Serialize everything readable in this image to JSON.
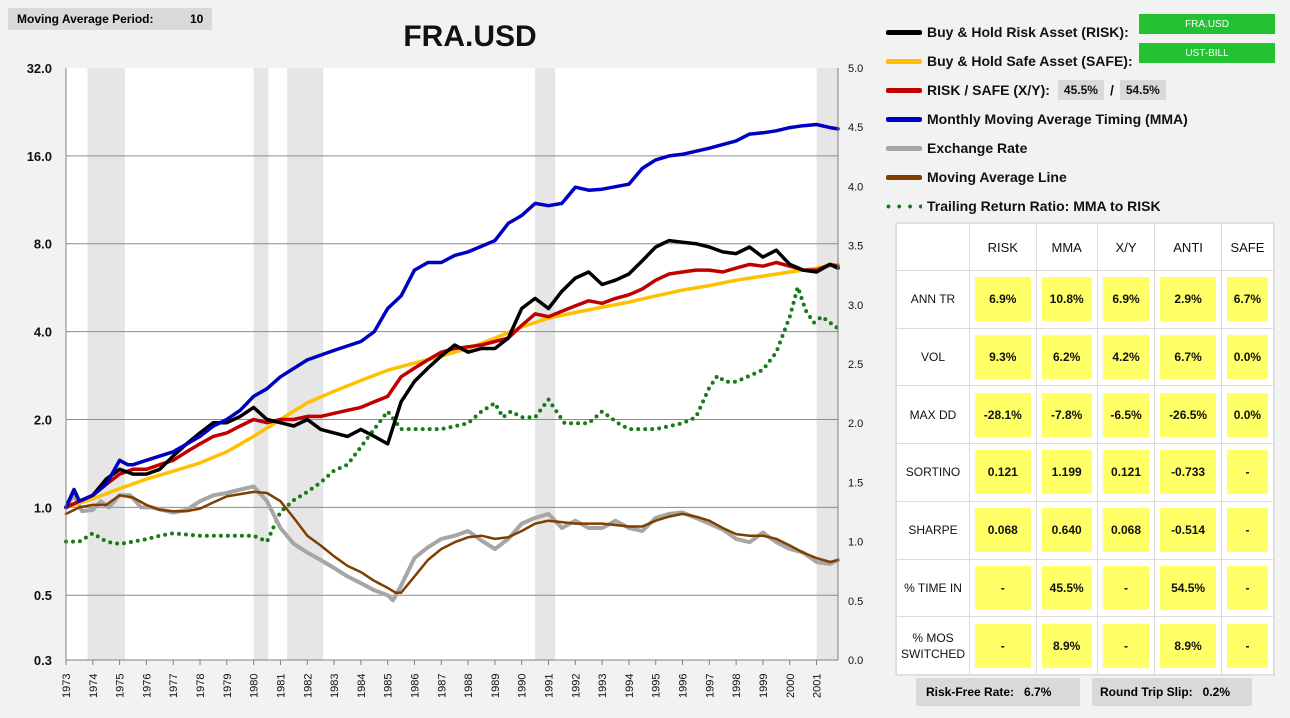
{
  "controls": {
    "period_label": "Moving Average Period:",
    "period_value": "10"
  },
  "legend": [
    {
      "label": "Buy & Hold Risk Asset (RISK):",
      "color": "#000000",
      "style": "line",
      "tag": "FRA.USD"
    },
    {
      "label": "Buy & Hold Safe Asset (SAFE):",
      "color": "#ffc000",
      "style": "line",
      "tag": "UST-BILL"
    },
    {
      "label": "RISK / SAFE (X/Y):",
      "color": "#c00000",
      "style": "line",
      "pct_risk": "45.5%",
      "pct_sep": "/",
      "pct_safe": "54.5%"
    },
    {
      "label": "Monthly Moving Average Timing (MMA)",
      "color": "#0000c0",
      "style": "line"
    },
    {
      "label": "Exchange Rate",
      "color": "#a6a6a6",
      "style": "line"
    },
    {
      "label": "Moving Average Line",
      "color": "#7f3f00",
      "style": "line"
    },
    {
      "label": "Trailing Return Ratio: MMA to RISK",
      "color": "#1a7a1a",
      "style": "dots"
    }
  ],
  "stats": {
    "columns": [
      "RISK",
      "MMA",
      "X/Y",
      "ANTI",
      "SAFE"
    ],
    "rows": [
      {
        "label": "ANN TR",
        "values": [
          "6.9%",
          "10.8%",
          "6.9%",
          "2.9%",
          "6.7%"
        ]
      },
      {
        "label": "VOL",
        "values": [
          "9.3%",
          "6.2%",
          "4.2%",
          "6.7%",
          "0.0%"
        ]
      },
      {
        "label": "MAX DD",
        "values": [
          "-28.1%",
          "-7.8%",
          "-6.5%",
          "-26.5%",
          "0.0%"
        ]
      },
      {
        "label": "SORTINO",
        "values": [
          "0.121",
          "1.199",
          "0.121",
          "-0.733",
          "-"
        ]
      },
      {
        "label": "SHARPE",
        "values": [
          "0.068",
          "0.640",
          "0.068",
          "-0.514",
          "-"
        ]
      },
      {
        "label": "% TIME IN",
        "values": [
          "-",
          "45.5%",
          "-",
          "54.5%",
          "-"
        ]
      },
      {
        "label": "% MOS SWITCHED",
        "values": [
          "-",
          "8.9%",
          "-",
          "8.9%",
          "-"
        ]
      }
    ]
  },
  "footer": {
    "risk_free": "Risk-Free Rate:   6.7%",
    "slip": "Round Trip Slip:   0.2%"
  },
  "chart_data": {
    "type": "line",
    "title": "FRA.USD",
    "y_left": {
      "scale": "log2",
      "ticks": [
        32.0,
        16.0,
        8.0,
        4.0,
        2.0,
        1.0,
        0.5,
        0.3
      ],
      "tick_labels": [
        "32.0",
        "16.0",
        "8.0",
        "4.0",
        "2.0",
        "1.0",
        "0.5",
        "0.3"
      ]
    },
    "y_right": {
      "ticks": [
        5.0,
        4.5,
        4.0,
        3.5,
        3.0,
        2.5,
        2.0,
        1.5,
        1.0,
        0.5,
        0.0
      ],
      "tick_labels": [
        "5.0",
        "4.5",
        "4.0",
        "3.5",
        "3.0",
        "2.5",
        "2.0",
        "1.5",
        "1.0",
        "0.5",
        "0.0"
      ],
      "ylim": [
        0,
        5
      ]
    },
    "x_ticks": [
      "1973",
      "1974",
      "1975",
      "1976",
      "1977",
      "1978",
      "1979",
      "1980",
      "1981",
      "1982",
      "1983",
      "1984",
      "1985",
      "1986",
      "1987",
      "1988",
      "1989",
      "1990",
      "1991",
      "1992",
      "1993",
      "1994",
      "1995",
      "1996",
      "1997",
      "1998",
      "1999",
      "2000",
      "2001"
    ],
    "xlim": [
      1973.0,
      2001.8
    ],
    "shaded_periods": [
      [
        1973.8,
        1975.2
      ],
      [
        1980.0,
        1980.55
      ],
      [
        1981.25,
        1982.6
      ],
      [
        1990.5,
        1991.25
      ],
      [
        2001.0,
        2001.8
      ]
    ],
    "series": [
      {
        "key": "mma",
        "axis": "left",
        "color": "#0000c0",
        "width": 3.5,
        "x": [
          1973.0,
          1973.3,
          1973.5,
          1974.0,
          1974.5,
          1975.0,
          1975.3,
          1975.5,
          1976.0,
          1977.0,
          1978.0,
          1978.5,
          1979.0,
          1979.5,
          1980.0,
          1980.5,
          1981.0,
          1982.0,
          1983.0,
          1984.0,
          1984.5,
          1985.0,
          1985.5,
          1986.0,
          1986.5,
          1987.0,
          1987.5,
          1988.0,
          1989.0,
          1989.5,
          1990.0,
          1990.5,
          1991.0,
          1991.5,
          1992.0,
          1992.5,
          1993.0,
          1994.0,
          1994.5,
          1995.0,
          1995.5,
          1996.0,
          1997.0,
          1998.0,
          1998.5,
          1999.0,
          1999.5,
          2000.0,
          2000.5,
          2001.0,
          2001.5,
          2001.8
        ],
        "y": [
          1.0,
          1.15,
          1.05,
          1.1,
          1.2,
          1.45,
          1.4,
          1.4,
          1.45,
          1.55,
          1.75,
          1.9,
          2.0,
          2.15,
          2.4,
          2.55,
          2.8,
          3.2,
          3.45,
          3.7,
          4.0,
          4.8,
          5.3,
          6.5,
          6.9,
          6.9,
          7.3,
          7.5,
          8.2,
          9.4,
          10.0,
          11.0,
          10.8,
          11.0,
          12.5,
          12.2,
          12.3,
          12.8,
          14.5,
          15.5,
          16.0,
          16.2,
          17.0,
          18.0,
          19.0,
          19.2,
          19.5,
          20.0,
          20.3,
          20.5,
          20.0,
          19.8
        ]
      },
      {
        "key": "risk",
        "axis": "left",
        "color": "#000000",
        "width": 3.5,
        "x": [
          1973.0,
          1973.3,
          1973.5,
          1974.0,
          1974.5,
          1975.0,
          1975.5,
          1976.0,
          1976.5,
          1977.0,
          1977.5,
          1978.0,
          1978.5,
          1979.0,
          1979.5,
          1980.0,
          1980.5,
          1981.0,
          1981.5,
          1982.0,
          1982.5,
          1983.0,
          1983.5,
          1984.0,
          1984.5,
          1985.0,
          1985.5,
          1986.0,
          1986.5,
          1987.0,
          1987.5,
          1988.0,
          1988.5,
          1989.0,
          1989.5,
          1990.0,
          1990.5,
          1991.0,
          1991.5,
          1992.0,
          1992.5,
          1993.0,
          1993.5,
          1994.0,
          1994.5,
          1995.0,
          1995.5,
          1996.0,
          1996.5,
          1997.0,
          1997.5,
          1998.0,
          1998.5,
          1999.0,
          1999.5,
          2000.0,
          2000.5,
          2001.0,
          2001.5,
          2001.8
        ],
        "y": [
          1.0,
          1.15,
          1.05,
          1.1,
          1.25,
          1.35,
          1.3,
          1.3,
          1.35,
          1.5,
          1.65,
          1.8,
          1.95,
          1.95,
          2.05,
          2.2,
          2.0,
          1.95,
          1.9,
          2.0,
          1.85,
          1.8,
          1.75,
          1.85,
          1.75,
          1.65,
          2.3,
          2.7,
          3.0,
          3.3,
          3.6,
          3.4,
          3.5,
          3.5,
          3.8,
          4.8,
          5.2,
          4.8,
          5.5,
          6.1,
          6.4,
          5.8,
          6.0,
          6.3,
          7.0,
          7.8,
          8.2,
          8.1,
          8.0,
          7.8,
          7.5,
          7.4,
          7.8,
          7.2,
          7.6,
          6.8,
          6.5,
          6.4,
          6.8,
          6.6
        ]
      },
      {
        "key": "xy",
        "axis": "left",
        "color": "#c00000",
        "width": 3.5,
        "x": [
          1973.0,
          1973.5,
          1974.0,
          1974.5,
          1975.0,
          1975.5,
          1976.0,
          1976.5,
          1977.0,
          1977.5,
          1978.0,
          1978.5,
          1979.0,
          1979.5,
          1980.0,
          1980.5,
          1981.0,
          1981.5,
          1982.0,
          1982.5,
          1983.0,
          1983.5,
          1984.0,
          1984.5,
          1985.0,
          1985.5,
          1986.0,
          1986.5,
          1987.0,
          1987.5,
          1988.0,
          1988.5,
          1989.0,
          1989.5,
          1990.0,
          1990.5,
          1991.0,
          1991.5,
          1992.0,
          1992.5,
          1993.0,
          1993.5,
          1994.0,
          1994.5,
          1995.0,
          1995.5,
          1996.0,
          1996.5,
          1997.0,
          1997.5,
          1998.0,
          1998.5,
          1999.0,
          1999.5,
          2000.0,
          2000.5,
          2001.0,
          2001.5,
          2001.8
        ],
        "y": [
          1.0,
          1.05,
          1.1,
          1.2,
          1.3,
          1.35,
          1.35,
          1.4,
          1.45,
          1.55,
          1.65,
          1.75,
          1.8,
          1.9,
          2.0,
          1.95,
          2.0,
          2.0,
          2.05,
          2.05,
          2.1,
          2.15,
          2.2,
          2.3,
          2.4,
          2.8,
          3.0,
          3.2,
          3.4,
          3.5,
          3.55,
          3.6,
          3.7,
          3.8,
          4.2,
          4.6,
          4.5,
          4.7,
          4.9,
          5.1,
          5.0,
          5.2,
          5.35,
          5.6,
          6.0,
          6.3,
          6.4,
          6.5,
          6.5,
          6.4,
          6.6,
          6.8,
          6.7,
          6.9,
          6.7,
          6.5,
          6.5,
          6.8,
          6.7
        ]
      },
      {
        "key": "safe",
        "axis": "left",
        "color": "#ffc000",
        "width": 3.5,
        "x": [
          1973.0,
          1974.0,
          1975.0,
          1976.0,
          1977.0,
          1978.0,
          1979.0,
          1980.0,
          1981.0,
          1982.0,
          1983.0,
          1984.0,
          1985.0,
          1986.0,
          1987.0,
          1988.0,
          1989.0,
          1990.0,
          1991.0,
          1992.0,
          1993.0,
          1994.0,
          1995.0,
          1996.0,
          1997.0,
          1998.0,
          1999.0,
          2000.0,
          2001.0,
          2001.8
        ],
        "y": [
          1.0,
          1.07,
          1.16,
          1.25,
          1.33,
          1.42,
          1.55,
          1.75,
          2.0,
          2.28,
          2.5,
          2.72,
          2.95,
          3.12,
          3.3,
          3.5,
          3.8,
          4.15,
          4.45,
          4.65,
          4.85,
          5.05,
          5.3,
          5.55,
          5.75,
          6.0,
          6.2,
          6.4,
          6.6,
          6.8
        ]
      },
      {
        "key": "fx",
        "axis": "left",
        "color": "#a6a6a6",
        "width": 4,
        "x": [
          1973.0,
          1973.3,
          1973.6,
          1974.0,
          1974.3,
          1974.6,
          1975.0,
          1975.4,
          1975.8,
          1976.2,
          1976.6,
          1977.0,
          1977.5,
          1978.0,
          1978.5,
          1979.0,
          1979.5,
          1980.0,
          1980.5,
          1981.0,
          1981.5,
          1982.0,
          1982.5,
          1983.0,
          1983.5,
          1984.0,
          1984.5,
          1985.0,
          1985.2,
          1985.5,
          1986.0,
          1986.5,
          1987.0,
          1987.5,
          1988.0,
          1988.5,
          1989.0,
          1989.5,
          1990.0,
          1990.5,
          1991.0,
          1991.5,
          1992.0,
          1992.5,
          1993.0,
          1993.5,
          1994.0,
          1994.5,
          1995.0,
          1995.5,
          1996.0,
          1996.5,
          1997.0,
          1997.5,
          1998.0,
          1998.5,
          1999.0,
          1999.5,
          2000.0,
          2000.5,
          2001.0,
          2001.5,
          2001.8
        ],
        "y": [
          1.0,
          1.1,
          0.97,
          0.98,
          1.05,
          1.0,
          1.1,
          1.1,
          1.0,
          1.0,
          0.98,
          0.96,
          0.98,
          1.05,
          1.1,
          1.12,
          1.15,
          1.18,
          1.05,
          0.85,
          0.75,
          0.7,
          0.66,
          0.62,
          0.58,
          0.55,
          0.52,
          0.5,
          0.48,
          0.54,
          0.67,
          0.73,
          0.78,
          0.8,
          0.83,
          0.77,
          0.72,
          0.78,
          0.88,
          0.92,
          0.95,
          0.85,
          0.9,
          0.85,
          0.85,
          0.9,
          0.85,
          0.83,
          0.92,
          0.95,
          0.96,
          0.92,
          0.88,
          0.84,
          0.78,
          0.76,
          0.82,
          0.76,
          0.72,
          0.7,
          0.65,
          0.64,
          0.66
        ]
      },
      {
        "key": "ma",
        "axis": "left",
        "color": "#7f3f00",
        "width": 2.5,
        "x": [
          1973.0,
          1973.5,
          1974.0,
          1974.5,
          1975.0,
          1975.5,
          1976.0,
          1976.5,
          1977.0,
          1977.5,
          1978.0,
          1978.5,
          1979.0,
          1979.5,
          1980.0,
          1980.5,
          1981.0,
          1981.5,
          1982.0,
          1982.5,
          1983.0,
          1983.5,
          1984.0,
          1984.5,
          1985.0,
          1985.3,
          1985.5,
          1986.0,
          1986.5,
          1987.0,
          1987.5,
          1988.0,
          1988.5,
          1989.0,
          1989.5,
          1990.0,
          1990.5,
          1991.0,
          1991.5,
          1992.0,
          1992.5,
          1993.0,
          1993.5,
          1994.0,
          1994.5,
          1995.0,
          1995.5,
          1996.0,
          1996.5,
          1997.0,
          1997.5,
          1998.0,
          1998.5,
          1999.0,
          1999.5,
          2000.0,
          2000.5,
          2001.0,
          2001.5,
          2001.8
        ],
        "y": [
          0.95,
          1.0,
          1.02,
          1.02,
          1.1,
          1.08,
          1.02,
          0.98,
          0.97,
          0.97,
          0.99,
          1.04,
          1.09,
          1.11,
          1.13,
          1.12,
          1.05,
          0.92,
          0.8,
          0.74,
          0.68,
          0.63,
          0.6,
          0.56,
          0.53,
          0.51,
          0.51,
          0.58,
          0.66,
          0.72,
          0.76,
          0.79,
          0.8,
          0.78,
          0.79,
          0.83,
          0.88,
          0.9,
          0.89,
          0.88,
          0.88,
          0.88,
          0.87,
          0.86,
          0.86,
          0.9,
          0.93,
          0.95,
          0.93,
          0.9,
          0.85,
          0.81,
          0.8,
          0.8,
          0.78,
          0.74,
          0.7,
          0.67,
          0.65,
          0.66
        ]
      },
      {
        "key": "ratio",
        "axis": "right",
        "color": "#1a7a1a",
        "width": 4,
        "style": "dots",
        "x": [
          1973.0,
          1973.5,
          1974.0,
          1974.5,
          1975.0,
          1975.5,
          1976.0,
          1976.5,
          1977.0,
          1978.0,
          1979.0,
          1980.0,
          1980.5,
          1981.0,
          1981.5,
          1982.0,
          1982.5,
          1983.0,
          1983.5,
          1984.0,
          1984.5,
          1985.0,
          1985.5,
          1986.0,
          1987.0,
          1988.0,
          1988.5,
          1989.0,
          1989.3,
          1989.6,
          1990.0,
          1990.5,
          1991.0,
          1991.3,
          1991.6,
          1992.0,
          1992.5,
          1993.0,
          1993.3,
          1993.6,
          1994.0,
          1995.0,
          1996.0,
          1996.5,
          1997.0,
          1997.3,
          1997.6,
          1998.0,
          1998.5,
          1999.0,
          1999.5,
          2000.0,
          2000.3,
          2000.6,
          2000.9,
          2001.2,
          2001.5,
          2001.8
        ],
        "y": [
          1.0,
          1.0,
          1.07,
          1.0,
          0.98,
          1.0,
          1.02,
          1.05,
          1.07,
          1.05,
          1.05,
          1.05,
          1.0,
          1.25,
          1.35,
          1.42,
          1.5,
          1.6,
          1.65,
          1.8,
          1.95,
          2.1,
          1.95,
          1.95,
          1.95,
          2.0,
          2.1,
          2.17,
          2.05,
          2.1,
          2.05,
          2.05,
          2.2,
          2.1,
          2.0,
          2.0,
          2.0,
          2.1,
          2.05,
          2.0,
          1.95,
          1.95,
          2.0,
          2.05,
          2.3,
          2.4,
          2.35,
          2.35,
          2.4,
          2.45,
          2.6,
          2.9,
          3.15,
          2.95,
          2.85,
          2.9,
          2.85,
          2.8
        ]
      }
    ]
  }
}
